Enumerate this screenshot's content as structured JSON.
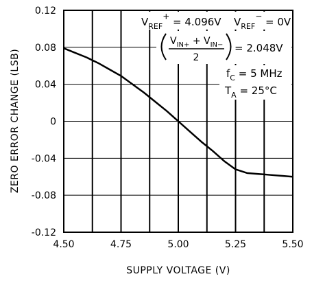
{
  "chart_data": {
    "type": "line",
    "xlabel": "SUPPLY VOLTAGE (V)",
    "ylabel": "ZERO ERROR CHANGE (LSB)",
    "xlim": [
      4.5,
      5.5
    ],
    "ylim": [
      -0.12,
      0.12
    ],
    "x_ticks": [
      "4.50",
      "4.75",
      "5.00",
      "5.25",
      "5.50"
    ],
    "y_ticks": [
      "0.12",
      "0.08",
      "0.04",
      "0",
      "-0.04",
      "-0.08",
      "-0.12"
    ],
    "grid": true,
    "series": [
      {
        "x": [
          4.5,
          4.55,
          4.6,
          4.65,
          4.7,
          4.75,
          4.8,
          4.85,
          4.9,
          4.95,
          5.0,
          5.05,
          5.1,
          5.15,
          5.2,
          5.25,
          5.3,
          5.35,
          5.4,
          5.45,
          5.5
        ],
        "y": [
          0.079,
          0.074,
          0.069,
          0.063,
          0.056,
          0.049,
          0.04,
          0.031,
          0.021,
          0.011,
          0.0,
          -0.011,
          -0.022,
          -0.032,
          -0.043,
          -0.052,
          -0.056,
          -0.057,
          -0.058,
          -0.059,
          -0.06
        ]
      }
    ],
    "annotations": {
      "vref_plus_main": "V",
      "vref_plus_sub": "REF",
      "vref_plus_sup": "+",
      "vref_plus_value": " = 4.096V",
      "vref_minus_main": "V",
      "vref_minus_sub": "REF",
      "vref_minus_sup": "−",
      "vref_minus_value": " = 0V",
      "vin_plus_main": "V",
      "vin_plus_sub": "IN+",
      "vin_plus_sep": " + ",
      "vin_minus_main": "V",
      "vin_minus_sub": "IN−",
      "vin_denominator": "2",
      "vin_value": " = 2.048V",
      "fc_main": "f",
      "fc_sub": "C",
      "fc_value": " =  5 MHz",
      "ta_main": "T",
      "ta_sub": "A",
      "ta_value": " =  25°C"
    }
  }
}
